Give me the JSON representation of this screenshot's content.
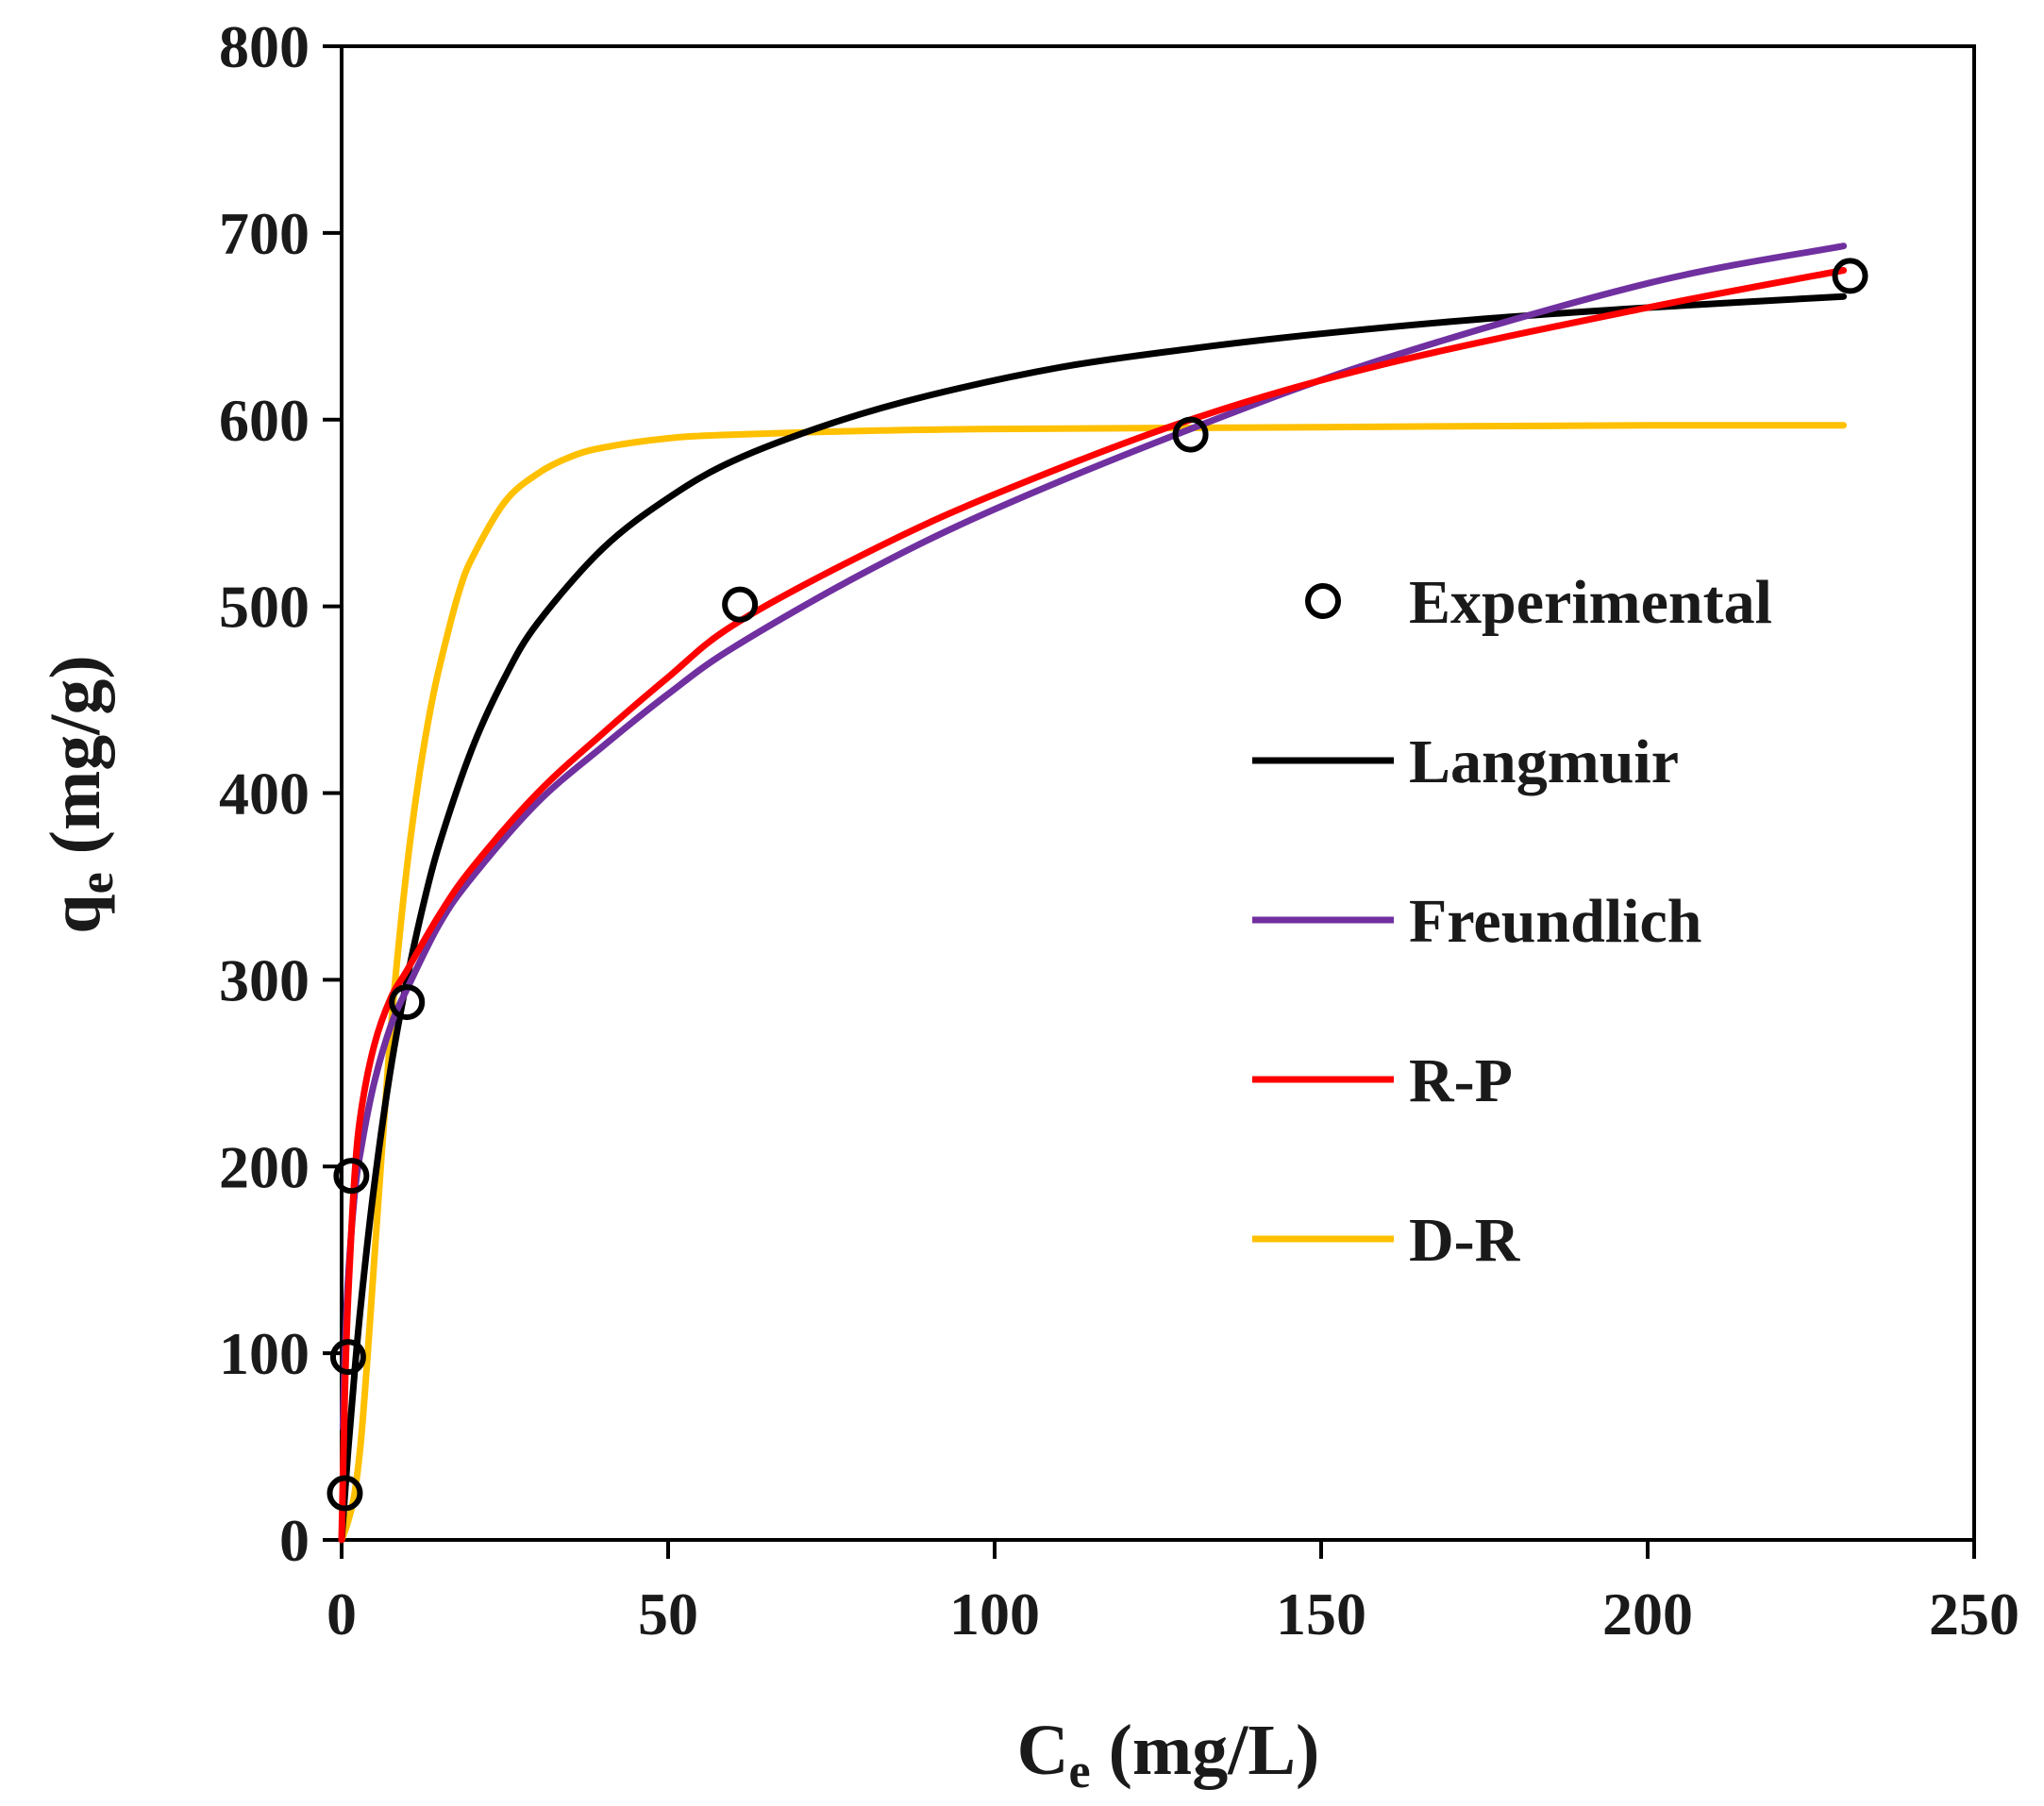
{
  "chart_data": {
    "type": "scatter",
    "title": "",
    "xlabel": {
      "main": "C",
      "sub": "e",
      "unit": " (mg/L)"
    },
    "ylabel": {
      "main": "q",
      "sub": "e",
      "unit": " (mg/g)"
    },
    "xlim": [
      0,
      250
    ],
    "ylim": [
      0,
      800
    ],
    "xticks": [
      0,
      50,
      100,
      150,
      200,
      250
    ],
    "yticks": [
      0,
      100,
      200,
      300,
      400,
      500,
      600,
      700,
      800
    ],
    "grid": false,
    "legend_position": "right-center",
    "experimental": {
      "name": "Experimental",
      "color": "#000000",
      "x": [
        0.5,
        1.0,
        1.5,
        10,
        61,
        130,
        231
      ],
      "y": [
        25,
        98,
        195,
        288,
        501,
        592,
        677
      ]
    },
    "series": [
      {
        "name": "Langmuir",
        "color": "#000000",
        "x": [
          0,
          1,
          2,
          3,
          5,
          7.5,
          10,
          12.5,
          15,
          20,
          25,
          30,
          40,
          50,
          60,
          75,
          90,
          110,
          130,
          150,
          175,
          200,
          230
        ],
        "y": [
          0,
          48,
          90,
          128,
          190,
          252,
          300,
          340,
          373,
          424,
          462,
          491,
          531,
          558,
          578,
          598,
          613,
          628,
          638,
          646,
          654,
          660,
          666
        ]
      },
      {
        "name": "Freundlich",
        "color": "#7030a0",
        "x": [
          0.2,
          0.5,
          1,
          2,
          3,
          5,
          7.5,
          10,
          15,
          20,
          30,
          40,
          50,
          60,
          80,
          100,
          130,
          160,
          200,
          230
        ],
        "y": [
          60,
          100,
          140,
          185,
          210,
          245,
          275,
          295,
          330,
          355,
          395,
          425,
          453,
          478,
          518,
          552,
          595,
          633,
          673,
          693
        ]
      },
      {
        "name": "R-P",
        "color": "#ff0000",
        "x": [
          0,
          0.5,
          1,
          2,
          3,
          5,
          7.5,
          10,
          15,
          20,
          30,
          40,
          50,
          60,
          80,
          100,
          130,
          160,
          200,
          230
        ],
        "y": [
          0,
          80,
          130,
          195,
          230,
          265,
          290,
          305,
          335,
          360,
          400,
          432,
          462,
          490,
          528,
          560,
          600,
          630,
          660,
          680
        ]
      },
      {
        "name": "D-R",
        "color": "#ffc000",
        "x": [
          0,
          1,
          2,
          3,
          4,
          5,
          6,
          7,
          8,
          10,
          12,
          14,
          16,
          18,
          20,
          25,
          30,
          35,
          40,
          50,
          60,
          80,
          100,
          150,
          200,
          230
        ],
        "y": [
          0,
          10,
          25,
          55,
          100,
          150,
          200,
          248,
          292,
          360,
          412,
          452,
          482,
          508,
          526,
          556,
          571,
          580,
          585,
          590,
          592,
          594,
          595,
          596,
          597,
          597
        ]
      }
    ]
  }
}
